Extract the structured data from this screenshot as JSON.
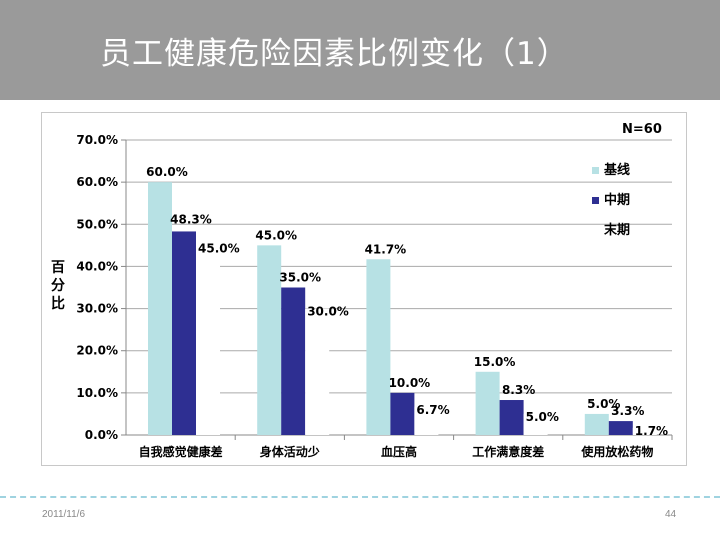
{
  "slide": {
    "title": "员工健康危险因素比例变化（1）",
    "date": "2011/11/6",
    "page": "44"
  },
  "colors": {
    "title_bar": "#9a9a9a",
    "series_baseline": "#b7e1e4",
    "series_mid": "#2e2f92",
    "series_end": "#ffffff",
    "grid": "#aaaaaa",
    "divider": "#9fd3e0"
  },
  "chart_data": {
    "type": "bar",
    "title": "",
    "annotation": "N=60",
    "xlabel": "",
    "ylabel": "百分比",
    "ylim": [
      0,
      70
    ],
    "yticks": [
      "0.0%",
      "10.0%",
      "20.0%",
      "30.0%",
      "40.0%",
      "50.0%",
      "60.0%",
      "70.0%"
    ],
    "grid": true,
    "legend_position": "right",
    "categories": [
      "自我感觉健康差",
      "身体活动少",
      "血压高",
      "工作满意度差",
      "使用放松药物"
    ],
    "series": [
      {
        "name": "基线",
        "values": [
          60.0,
          45.0,
          41.7,
          15.0,
          5.0
        ],
        "labels": [
          "60.0%",
          "45.0%",
          "41.7%",
          "15.0%",
          "5.0%"
        ]
      },
      {
        "name": "中期",
        "values": [
          48.3,
          35.0,
          10.0,
          8.3,
          3.3
        ],
        "labels": [
          "48.3%",
          "35.0%",
          "10.0%",
          "8.3%",
          "3.3%"
        ]
      },
      {
        "name": "末期",
        "values": [
          45.0,
          30.0,
          6.7,
          5.0,
          1.7
        ],
        "labels": [
          "45.0%",
          "30.0%",
          "6.7%",
          "5.0%",
          "1.7%"
        ]
      }
    ]
  }
}
